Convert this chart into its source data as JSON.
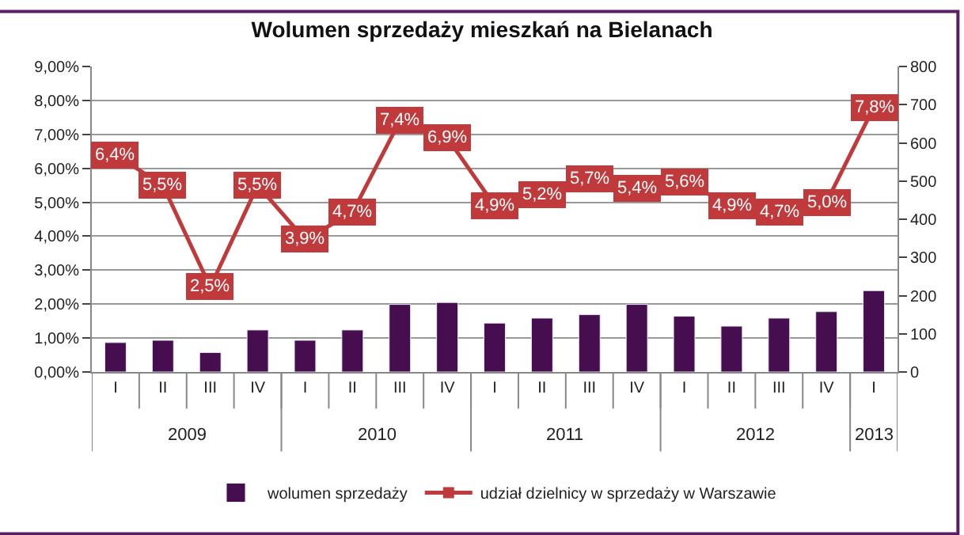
{
  "chart_data": {
    "type": "bar",
    "title": "Wolumen sprzedaży mieszkań na Bielanach",
    "categories": [
      "I",
      "II",
      "III",
      "IV",
      "I",
      "II",
      "III",
      "IV",
      "I",
      "II",
      "III",
      "IV",
      "I",
      "II",
      "III",
      "IV",
      "I"
    ],
    "annotations": [
      "2009",
      "2010",
      "2011",
      "2012",
      "2013"
    ],
    "series": [
      {
        "name": "wolumen sprzedaży",
        "axis": "y2",
        "color": "#460e4f",
        "values": [
          77,
          83,
          51,
          110,
          83,
          110,
          177,
          182,
          128,
          141,
          150,
          177,
          146,
          120,
          141,
          158,
          213
        ]
      },
      {
        "name": "udział dzielnicy w sprzedaży w Warszawie",
        "type": "line",
        "color": "#c0393b",
        "marker": "square",
        "line_style": "solid",
        "values": [
          6.4,
          5.5,
          2.5,
          5.5,
          3.9,
          4.7,
          7.4,
          6.9,
          4.9,
          5.2,
          5.7,
          5.4,
          5.6,
          4.9,
          4.7,
          5.0,
          7.8
        ],
        "value_labels": [
          "6,4%",
          "5,5%",
          "2,5%",
          "5,5%",
          "3,9%",
          "4,7%",
          "7,4%",
          "6,9%",
          "4,9%",
          "5,2%",
          "5,7%",
          "5,4%",
          "5,6%",
          "4,9%",
          "4,7%",
          "5,0%",
          "7,8%"
        ]
      }
    ],
    "ylim": [
      0,
      9
    ],
    "yticks": [
      {
        "value": 0,
        "label": "0,00%"
      },
      {
        "value": 1,
        "label": "1,00%"
      },
      {
        "value": 2,
        "label": "2,00%"
      },
      {
        "value": 3,
        "label": "3,00%"
      },
      {
        "value": 4,
        "label": "4,00%"
      },
      {
        "value": 5,
        "label": "5,00%"
      },
      {
        "value": 6,
        "label": "6,00%"
      },
      {
        "value": 7,
        "label": "7,00%"
      },
      {
        "value": 8,
        "label": "8,00%"
      },
      {
        "value": 9,
        "label": "9,00%"
      }
    ],
    "y2lim": [
      0,
      800
    ],
    "y2ticks": [
      0,
      100,
      200,
      300,
      400,
      500,
      600,
      700,
      800
    ],
    "grid": "y",
    "legend": "bottom"
  }
}
